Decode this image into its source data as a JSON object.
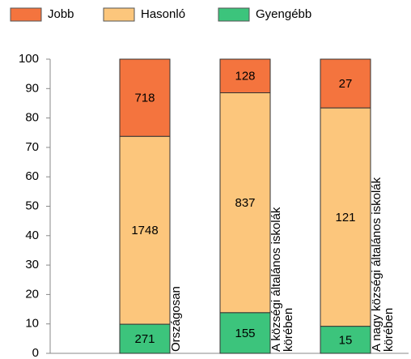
{
  "chart_data": {
    "type": "bar",
    "stacked": "percent",
    "categories": [
      "Országosan",
      "A községi általános iskolák körében",
      "A nagy községi általános iskolák körében"
    ],
    "series": [
      {
        "name": "Gyengébb",
        "color": "#3cc47c",
        "values": [
          271,
          155,
          15
        ]
      },
      {
        "name": "Hasonló",
        "color": "#fcc67c",
        "values": [
          1748,
          837,
          121
        ]
      },
      {
        "name": "Jobb",
        "color": "#f4743e",
        "values": [
          718,
          128,
          27
        ]
      }
    ],
    "legend_order": [
      2,
      1,
      0
    ],
    "ylim": [
      0,
      100
    ],
    "yticks": [
      0,
      10,
      20,
      30,
      40,
      50,
      60,
      70,
      80,
      90,
      100
    ]
  }
}
